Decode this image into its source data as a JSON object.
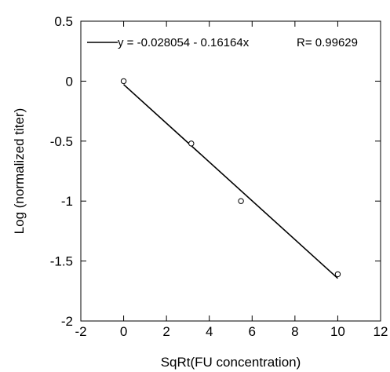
{
  "chart_data": {
    "type": "scatter",
    "xlabel": "SqRt(FU concentration)",
    "ylabel": "Log (normalized titer)",
    "xlim": [
      -2,
      12
    ],
    "ylim": [
      -2,
      0.5
    ],
    "x_ticks": [
      -2,
      0,
      2,
      4,
      6,
      8,
      10,
      12
    ],
    "y_ticks": [
      -2,
      -1.5,
      -1,
      -0.5,
      0,
      0.5
    ],
    "x_tick_labels": [
      "-2",
      "0",
      "2",
      "4",
      "6",
      "8",
      "10",
      "12"
    ],
    "y_tick_labels": [
      "-2",
      "-1.5",
      "-1",
      "-0.5",
      "0",
      "0.5"
    ],
    "grid": false,
    "legend_position": "top",
    "points": [
      {
        "x": 0,
        "y": 0
      },
      {
        "x": 3.16,
        "y": -0.52
      },
      {
        "x": 5.48,
        "y": -1.0
      },
      {
        "x": 10,
        "y": -1.61
      }
    ],
    "fit": {
      "intercept": -0.028054,
      "slope": -0.16164,
      "x_range": [
        0,
        10
      ],
      "equation_text": "y = -0.028054 - 0.16164x",
      "r_text": "R= 0.99629"
    }
  }
}
